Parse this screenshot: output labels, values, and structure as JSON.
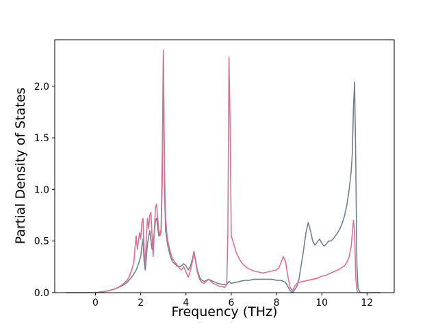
{
  "figure": {
    "background": "#ffffff"
  },
  "chart_data": {
    "type": "line",
    "title": "",
    "xlabel": "Frequency (THz)",
    "ylabel": "Partial Density of States",
    "xlim": [
      -1.8,
      13.2
    ],
    "ylim": [
      0,
      2.45
    ],
    "x_ticks": [
      0,
      2,
      4,
      6,
      8,
      10,
      12
    ],
    "x_tick_labels": [
      "0",
      "2",
      "4",
      "6",
      "8",
      "10",
      "12"
    ],
    "y_ticks": [
      0.0,
      0.5,
      1.0,
      1.5,
      2.0
    ],
    "y_tick_labels": [
      "0.0",
      "0.5",
      "1.0",
      "1.5",
      "2.0"
    ],
    "grid": false,
    "legend": null,
    "frame_color": "#000000",
    "series": [
      {
        "name": "pdos-gray",
        "color": "#708090",
        "linewidth": 1.6,
        "points": [
          [
            -1.3,
            0.0
          ],
          [
            -0.8,
            0.0
          ],
          [
            -0.3,
            0.0
          ],
          [
            0.0,
            0.0
          ],
          [
            0.3,
            0.01
          ],
          [
            0.6,
            0.02
          ],
          [
            0.9,
            0.04
          ],
          [
            1.2,
            0.07
          ],
          [
            1.4,
            0.1
          ],
          [
            1.6,
            0.15
          ],
          [
            1.8,
            0.22
          ],
          [
            1.9,
            0.28
          ],
          [
            2.0,
            0.35
          ],
          [
            2.05,
            0.45
          ],
          [
            2.1,
            0.52
          ],
          [
            2.15,
            0.3
          ],
          [
            2.2,
            0.22
          ],
          [
            2.3,
            0.48
          ],
          [
            2.4,
            0.6
          ],
          [
            2.5,
            0.42
          ],
          [
            2.6,
            0.58
          ],
          [
            2.65,
            0.7
          ],
          [
            2.7,
            0.72
          ],
          [
            2.8,
            0.55
          ],
          [
            2.9,
            0.58
          ],
          [
            2.95,
            1.1
          ],
          [
            3.0,
            2.3
          ],
          [
            3.05,
            1.0
          ],
          [
            3.1,
            0.6
          ],
          [
            3.2,
            0.45
          ],
          [
            3.3,
            0.36
          ],
          [
            3.4,
            0.3
          ],
          [
            3.5,
            0.28
          ],
          [
            3.6,
            0.26
          ],
          [
            3.7,
            0.25
          ],
          [
            3.8,
            0.26
          ],
          [
            3.9,
            0.28
          ],
          [
            4.0,
            0.26
          ],
          [
            4.1,
            0.22
          ],
          [
            4.2,
            0.26
          ],
          [
            4.3,
            0.34
          ],
          [
            4.35,
            0.4
          ],
          [
            4.4,
            0.34
          ],
          [
            4.5,
            0.22
          ],
          [
            4.6,
            0.15
          ],
          [
            4.7,
            0.12
          ],
          [
            4.8,
            0.11
          ],
          [
            4.9,
            0.12
          ],
          [
            5.0,
            0.13
          ],
          [
            5.2,
            0.11
          ],
          [
            5.4,
            0.09
          ],
          [
            5.6,
            0.08
          ],
          [
            5.8,
            0.08
          ],
          [
            5.9,
            0.11
          ],
          [
            6.0,
            0.09
          ],
          [
            6.2,
            0.1
          ],
          [
            6.4,
            0.11
          ],
          [
            6.6,
            0.12
          ],
          [
            6.8,
            0.12
          ],
          [
            7.0,
            0.13
          ],
          [
            7.2,
            0.13
          ],
          [
            7.5,
            0.13
          ],
          [
            7.8,
            0.13
          ],
          [
            8.0,
            0.12
          ],
          [
            8.2,
            0.12
          ],
          [
            8.4,
            0.1
          ],
          [
            8.5,
            0.06
          ],
          [
            8.6,
            0.02
          ],
          [
            8.7,
            0.0
          ],
          [
            8.8,
            0.03
          ],
          [
            8.9,
            0.06
          ],
          [
            9.0,
            0.14
          ],
          [
            9.1,
            0.28
          ],
          [
            9.2,
            0.42
          ],
          [
            9.3,
            0.58
          ],
          [
            9.4,
            0.68
          ],
          [
            9.5,
            0.6
          ],
          [
            9.6,
            0.5
          ],
          [
            9.7,
            0.46
          ],
          [
            9.8,
            0.49
          ],
          [
            9.9,
            0.52
          ],
          [
            10.0,
            0.48
          ],
          [
            10.1,
            0.45
          ],
          [
            10.2,
            0.47
          ],
          [
            10.3,
            0.5
          ],
          [
            10.4,
            0.5
          ],
          [
            10.5,
            0.52
          ],
          [
            10.6,
            0.55
          ],
          [
            10.7,
            0.58
          ],
          [
            10.8,
            0.62
          ],
          [
            10.9,
            0.67
          ],
          [
            11.0,
            0.74
          ],
          [
            11.1,
            0.84
          ],
          [
            11.2,
            0.98
          ],
          [
            11.3,
            1.18
          ],
          [
            11.35,
            1.35
          ],
          [
            11.4,
            1.8
          ],
          [
            11.45,
            2.04
          ],
          [
            11.5,
            1.3
          ],
          [
            11.55,
            0.3
          ],
          [
            11.6,
            0.04
          ],
          [
            11.7,
            0.0
          ],
          [
            12.0,
            0.0
          ],
          [
            12.3,
            0.0
          ],
          [
            12.6,
            0.0
          ]
        ]
      },
      {
        "name": "pdos-pink",
        "color": "#db7093",
        "linewidth": 1.6,
        "points": [
          [
            0.2,
            0.0
          ],
          [
            0.4,
            0.01
          ],
          [
            0.6,
            0.02
          ],
          [
            0.8,
            0.03
          ],
          [
            1.0,
            0.05
          ],
          [
            1.2,
            0.08
          ],
          [
            1.4,
            0.12
          ],
          [
            1.5,
            0.16
          ],
          [
            1.6,
            0.22
          ],
          [
            1.7,
            0.3
          ],
          [
            1.75,
            0.45
          ],
          [
            1.8,
            0.55
          ],
          [
            1.85,
            0.42
          ],
          [
            1.9,
            0.5
          ],
          [
            1.95,
            0.58
          ],
          [
            2.0,
            0.52
          ],
          [
            2.05,
            0.68
          ],
          [
            2.1,
            0.72
          ],
          [
            2.15,
            0.4
          ],
          [
            2.2,
            0.28
          ],
          [
            2.25,
            0.55
          ],
          [
            2.3,
            0.72
          ],
          [
            2.35,
            0.62
          ],
          [
            2.4,
            0.75
          ],
          [
            2.45,
            0.78
          ],
          [
            2.5,
            0.55
          ],
          [
            2.55,
            0.35
          ],
          [
            2.6,
            0.6
          ],
          [
            2.65,
            0.82
          ],
          [
            2.7,
            0.86
          ],
          [
            2.75,
            0.72
          ],
          [
            2.8,
            0.6
          ],
          [
            2.85,
            0.55
          ],
          [
            2.9,
            0.62
          ],
          [
            2.95,
            1.3
          ],
          [
            3.0,
            2.35
          ],
          [
            3.05,
            1.2
          ],
          [
            3.1,
            0.72
          ],
          [
            3.15,
            0.58
          ],
          [
            3.2,
            0.5
          ],
          [
            3.3,
            0.4
          ],
          [
            3.4,
            0.33
          ],
          [
            3.5,
            0.3
          ],
          [
            3.6,
            0.27
          ],
          [
            3.7,
            0.24
          ],
          [
            3.8,
            0.22
          ],
          [
            3.9,
            0.25
          ],
          [
            4.0,
            0.2
          ],
          [
            4.1,
            0.15
          ],
          [
            4.2,
            0.22
          ],
          [
            4.3,
            0.32
          ],
          [
            4.35,
            0.39
          ],
          [
            4.4,
            0.33
          ],
          [
            4.5,
            0.2
          ],
          [
            4.6,
            0.13
          ],
          [
            4.7,
            0.1
          ],
          [
            4.8,
            0.09
          ],
          [
            4.9,
            0.11
          ],
          [
            5.0,
            0.13
          ],
          [
            5.1,
            0.11
          ],
          [
            5.2,
            0.09
          ],
          [
            5.3,
            0.08
          ],
          [
            5.4,
            0.07
          ],
          [
            5.5,
            0.06
          ],
          [
            5.6,
            0.06
          ],
          [
            5.7,
            0.05
          ],
          [
            5.8,
            0.08
          ],
          [
            5.85,
            0.6
          ],
          [
            5.9,
            2.28
          ],
          [
            5.95,
            1.6
          ],
          [
            6.0,
            0.55
          ],
          [
            6.1,
            0.48
          ],
          [
            6.2,
            0.4
          ],
          [
            6.3,
            0.35
          ],
          [
            6.4,
            0.31
          ],
          [
            6.5,
            0.28
          ],
          [
            6.6,
            0.26
          ],
          [
            6.7,
            0.24
          ],
          [
            6.8,
            0.23
          ],
          [
            6.9,
            0.22
          ],
          [
            7.0,
            0.21
          ],
          [
            7.2,
            0.2
          ],
          [
            7.4,
            0.19
          ],
          [
            7.6,
            0.2
          ],
          [
            7.8,
            0.21
          ],
          [
            8.0,
            0.22
          ],
          [
            8.1,
            0.24
          ],
          [
            8.2,
            0.29
          ],
          [
            8.3,
            0.35
          ],
          [
            8.4,
            0.3
          ],
          [
            8.5,
            0.16
          ],
          [
            8.6,
            0.05
          ],
          [
            8.7,
            0.02
          ],
          [
            8.8,
            0.06
          ],
          [
            8.9,
            0.09
          ],
          [
            9.0,
            0.1
          ],
          [
            9.2,
            0.11
          ],
          [
            9.4,
            0.12
          ],
          [
            9.6,
            0.13
          ],
          [
            9.8,
            0.14
          ],
          [
            10.0,
            0.16
          ],
          [
            10.2,
            0.17
          ],
          [
            10.4,
            0.19
          ],
          [
            10.6,
            0.21
          ],
          [
            10.8,
            0.23
          ],
          [
            11.0,
            0.26
          ],
          [
            11.1,
            0.29
          ],
          [
            11.2,
            0.34
          ],
          [
            11.3,
            0.45
          ],
          [
            11.4,
            0.7
          ],
          [
            11.45,
            0.6
          ],
          [
            11.5,
            0.15
          ],
          [
            11.55,
            0.03
          ],
          [
            11.6,
            0.0
          ]
        ]
      }
    ]
  }
}
